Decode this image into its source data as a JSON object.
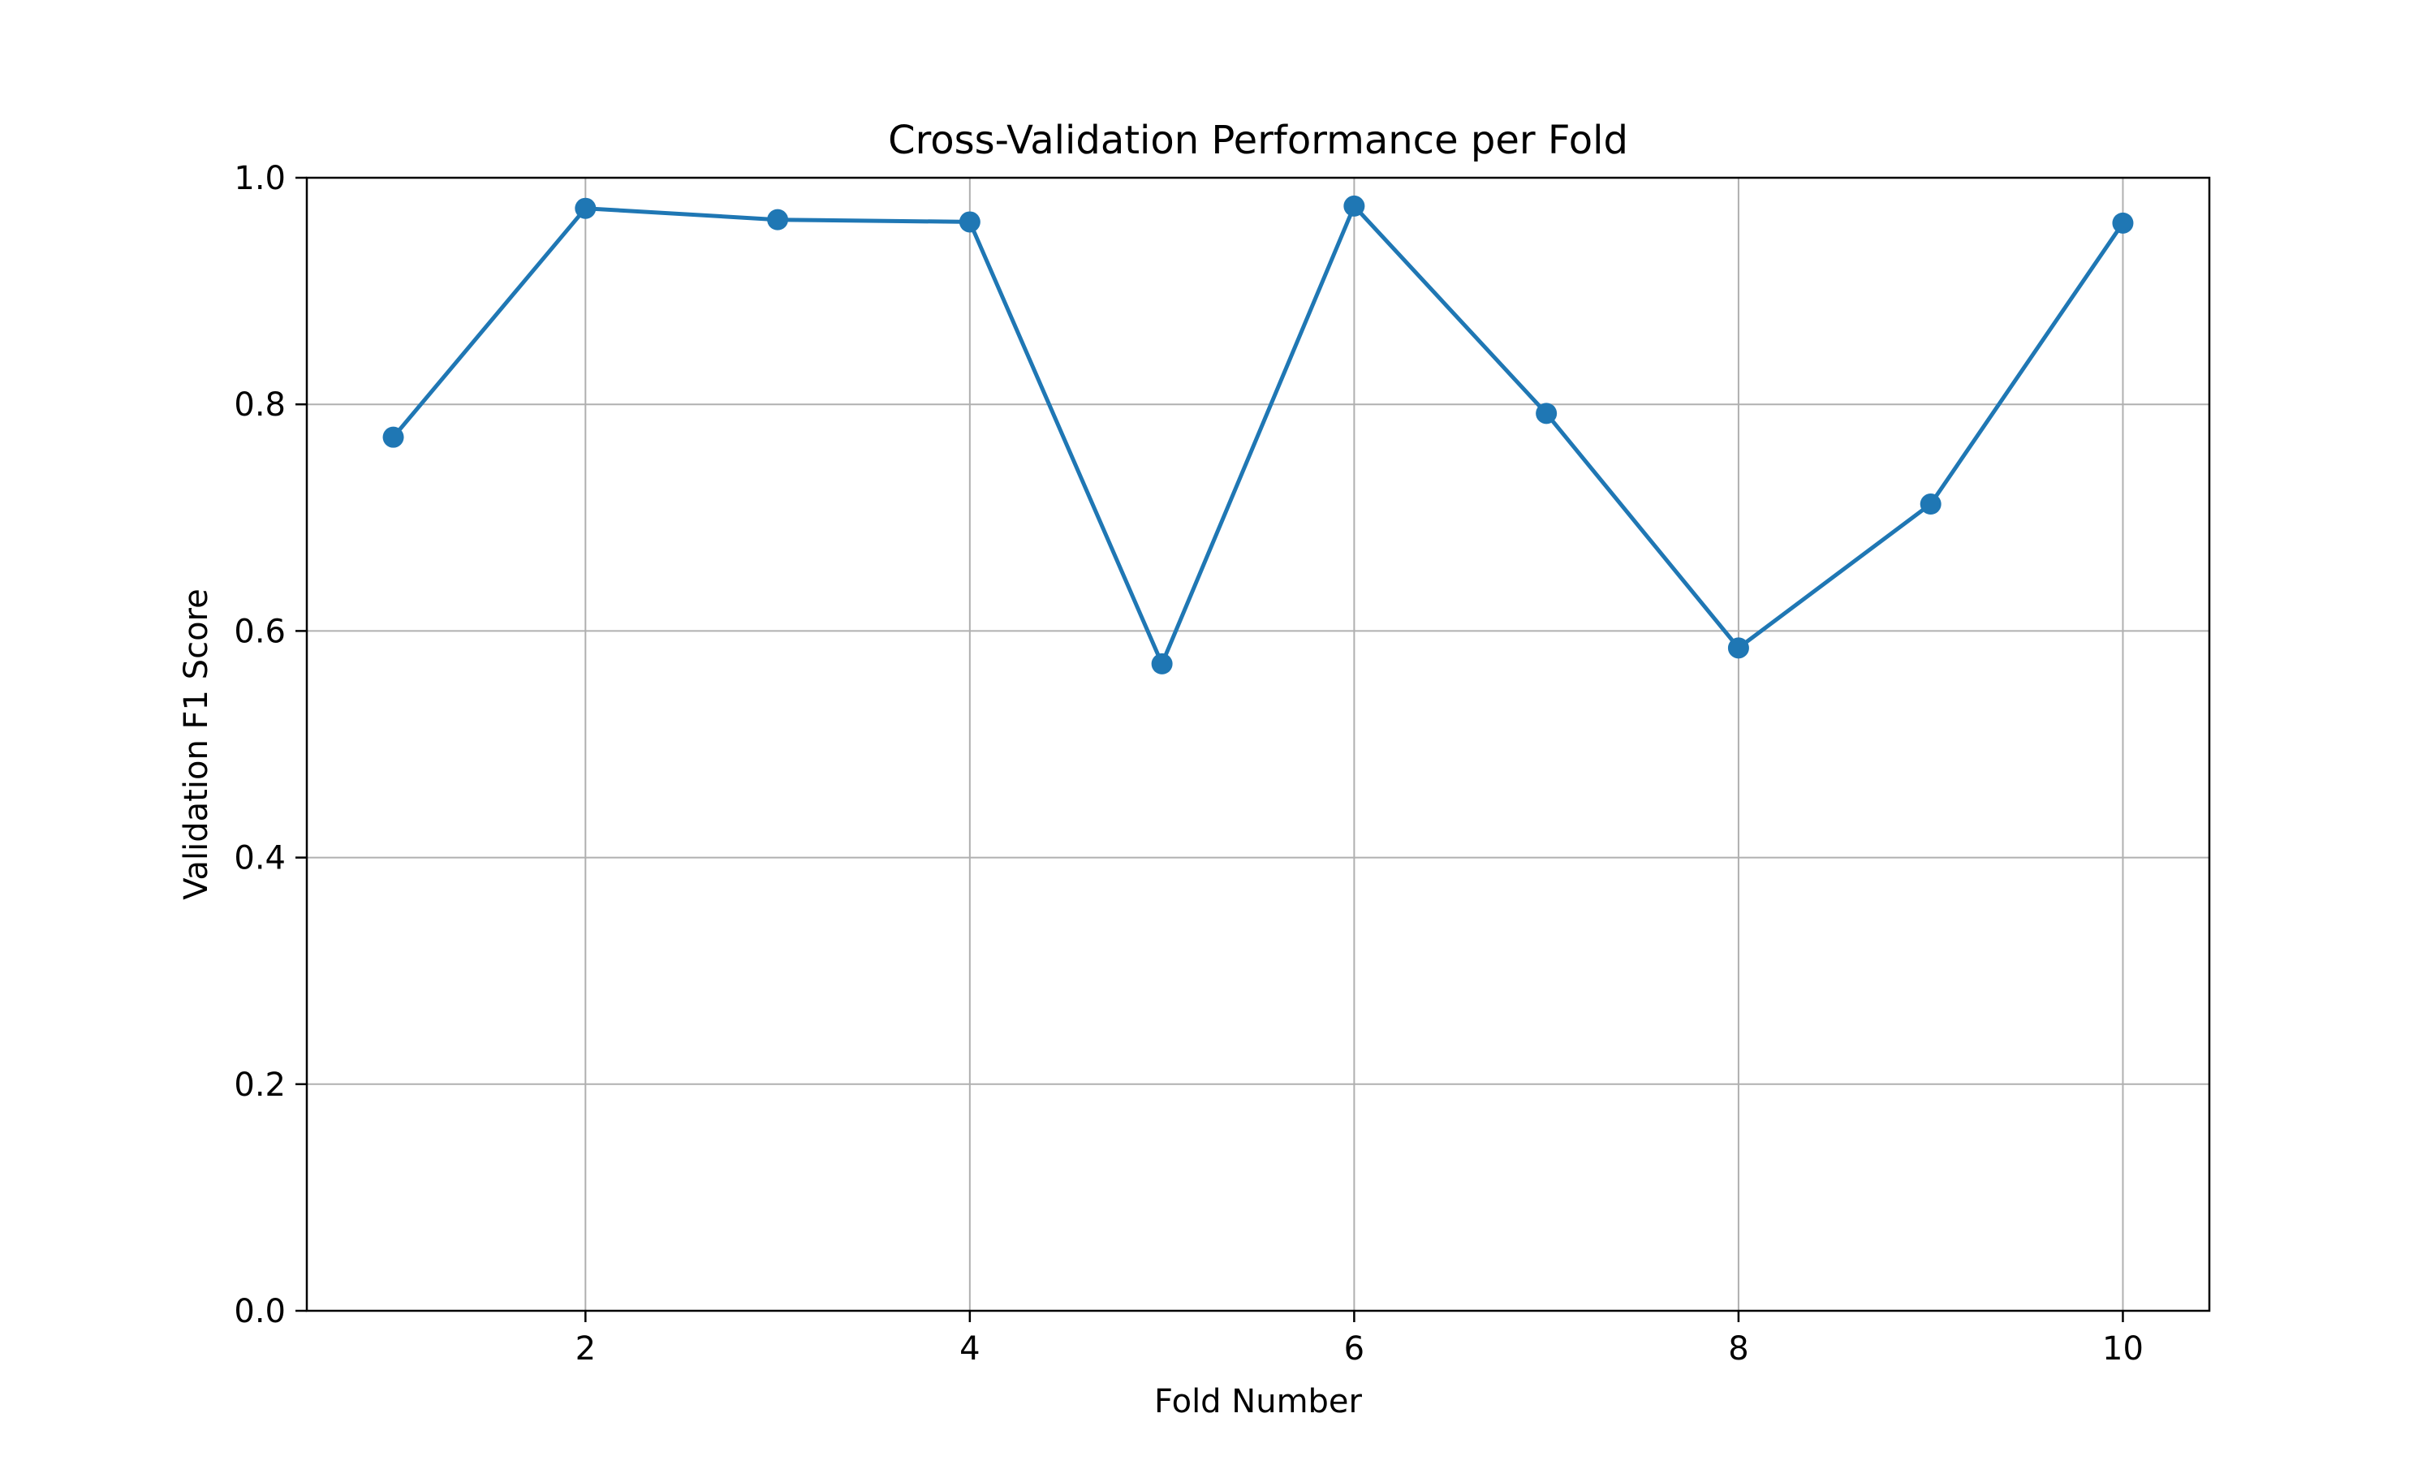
{
  "chart_data": {
    "type": "line",
    "title": "Cross-Validation Performance per Fold",
    "xlabel": "Fold Number",
    "ylabel": "Validation F1 Score",
    "xlim": [
      0.55,
      10.45
    ],
    "ylim": [
      0.0,
      1.0
    ],
    "x_ticks": [
      2,
      4,
      6,
      8,
      10
    ],
    "y_ticks": [
      0.0,
      0.2,
      0.4,
      0.6,
      0.8,
      1.0
    ],
    "y_tick_labels": [
      "0.0",
      "0.2",
      "0.4",
      "0.6",
      "0.8",
      "1.0"
    ],
    "grid": true,
    "marker": "circle",
    "series": [
      {
        "color": "#1f77b4",
        "x": [
          1,
          2,
          3,
          4,
          5,
          6,
          7,
          8,
          9,
          10
        ],
        "y": [
          0.771,
          0.973,
          0.963,
          0.961,
          0.571,
          0.975,
          0.792,
          0.585,
          0.712,
          0.96
        ]
      }
    ]
  }
}
